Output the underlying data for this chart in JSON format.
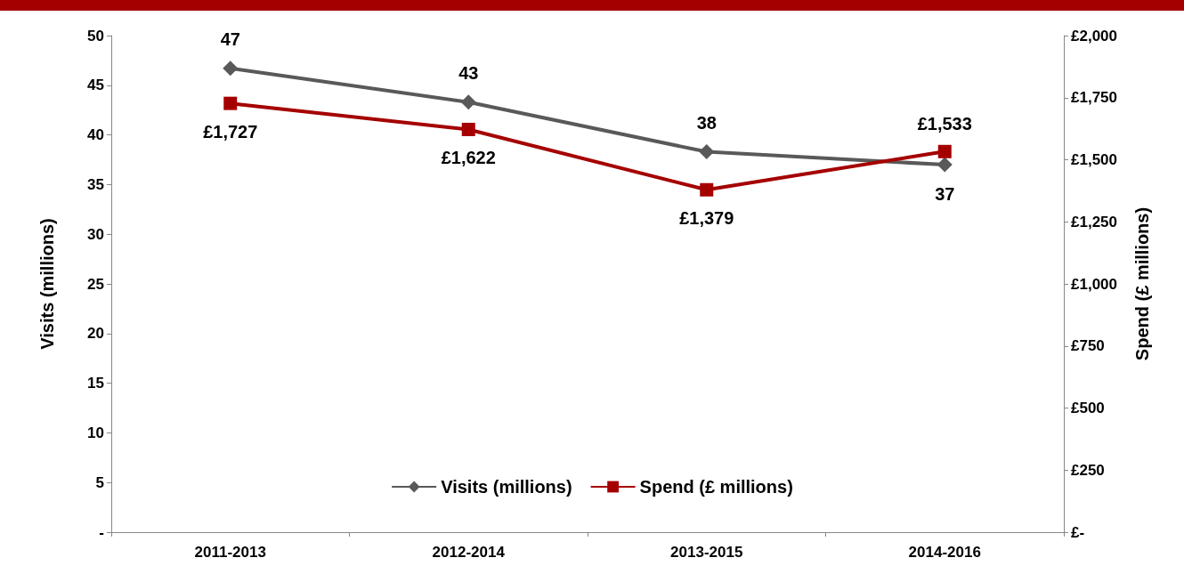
{
  "chart_data": {
    "type": "line",
    "categories": [
      "2011-2013",
      "2012-2014",
      "2013-2015",
      "2014-2016"
    ],
    "ylabel": "Visits (millions)",
    "y2label": "Spend (£ millions)",
    "series": [
      {
        "name": "Visits (millions)",
        "color": "#595959",
        "values": [
          46.7,
          43.3,
          38.3,
          37.0
        ],
        "value_labels": [
          "47",
          "43",
          "38",
          "37"
        ],
        "marker": "diamond"
      },
      {
        "name": "Spend (£ millions)",
        "color": "#a50000",
        "axis": "y2",
        "values": [
          1727,
          1622,
          1379,
          1533
        ],
        "value_labels": [
          "£1,727",
          "£1,622",
          "£1,379",
          "£1,533"
        ],
        "marker": "square"
      }
    ],
    "ylim": [
      0,
      50
    ],
    "yticks": [
      {
        "value": 0,
        "label": "-"
      },
      5,
      10,
      15,
      20,
      25,
      30,
      35,
      40,
      45,
      50
    ],
    "y2lim": [
      0,
      2000
    ],
    "y2ticks": [
      {
        "value": 0,
        "label": "£-"
      },
      {
        "value": 250,
        "label": "£250"
      },
      {
        "value": 500,
        "label": "£500"
      },
      {
        "value": 750,
        "label": "£750"
      },
      {
        "value": 1000,
        "label": "£1,000"
      },
      {
        "value": 1250,
        "label": "£1,250"
      },
      {
        "value": 1500,
        "label": "£1,500"
      },
      {
        "value": 1750,
        "label": "£1,750"
      },
      {
        "value": 2000,
        "label": "£2,000"
      }
    ],
    "grid": false,
    "legend": "bottom",
    "line_style": "solid"
  }
}
